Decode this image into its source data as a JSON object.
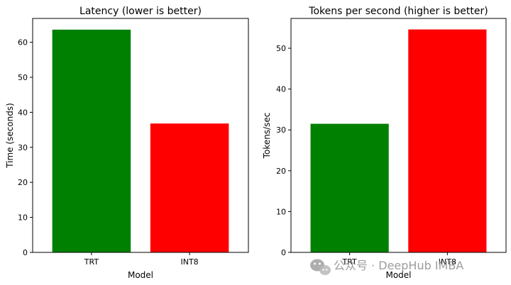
{
  "chart_data": [
    {
      "type": "bar",
      "title": "Latency (lower is better)",
      "xlabel": "Model",
      "ylabel": "Time (seconds)",
      "categories": [
        "TRT",
        "INT8"
      ],
      "values": [
        63.6,
        36.8
      ],
      "colors": [
        "#008000",
        "#ff0000"
      ],
      "ylim": [
        0,
        66.8
      ],
      "yticks": [
        0,
        10,
        20,
        30,
        40,
        50,
        60
      ],
      "grid": false,
      "legend": "none"
    },
    {
      "type": "bar",
      "title": "Tokens per second (higher is better)",
      "xlabel": "Model",
      "ylabel": "Tokens/sec",
      "categories": [
        "TRT",
        "INT8"
      ],
      "values": [
        31.5,
        54.6
      ],
      "colors": [
        "#008000",
        "#ff0000"
      ],
      "ylim": [
        0,
        57.3
      ],
      "yticks": [
        0,
        10,
        20,
        30,
        40,
        50
      ],
      "grid": false,
      "legend": "none"
    }
  ],
  "watermark": {
    "text": "公众号 · DeepHub IMBA",
    "icon": "wechat-icon",
    "color": "#8c8c8c"
  }
}
